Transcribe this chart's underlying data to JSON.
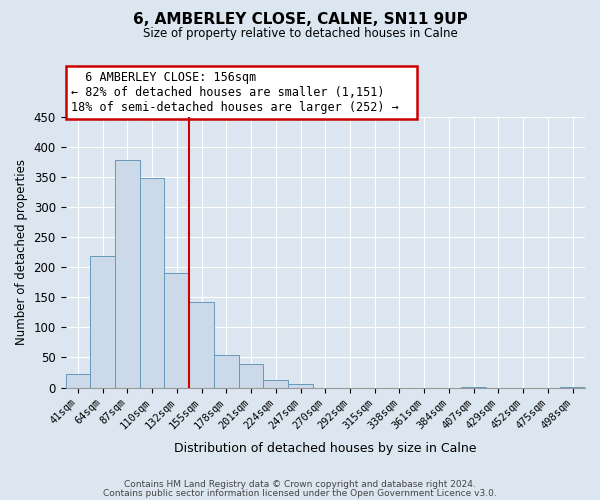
{
  "title": "6, AMBERLEY CLOSE, CALNE, SN11 9UP",
  "subtitle": "Size of property relative to detached houses in Calne",
  "xlabel": "Distribution of detached houses by size in Calne",
  "ylabel": "Number of detached properties",
  "bar_color": "#ccd9e8",
  "bar_edge_color": "#6699bb",
  "bin_labels": [
    "41sqm",
    "64sqm",
    "87sqm",
    "110sqm",
    "132sqm",
    "155sqm",
    "178sqm",
    "201sqm",
    "224sqm",
    "247sqm",
    "270sqm",
    "292sqm",
    "315sqm",
    "338sqm",
    "361sqm",
    "384sqm",
    "407sqm",
    "429sqm",
    "452sqm",
    "475sqm",
    "498sqm"
  ],
  "bar_heights": [
    22,
    218,
    378,
    348,
    190,
    142,
    54,
    40,
    13,
    6,
    0,
    0,
    0,
    0,
    0,
    0,
    1,
    0,
    0,
    0,
    1
  ],
  "ylim": [
    0,
    450
  ],
  "yticks": [
    0,
    50,
    100,
    150,
    200,
    250,
    300,
    350,
    400,
    450
  ],
  "annotation_title": "6 AMBERLEY CLOSE: 156sqm",
  "annotation_line1": "← 82% of detached houses are smaller (1,151)",
  "annotation_line2": "18% of semi-detached houses are larger (252) →",
  "footer1": "Contains HM Land Registry data © Crown copyright and database right 2024.",
  "footer2": "Contains public sector information licensed under the Open Government Licence v3.0.",
  "background_color": "#dce6f0",
  "plot_bg_color": "#dce6f0",
  "grid_color": "#ffffff",
  "annotation_box_color": "#ffffff",
  "annotation_box_edge": "#cc0000",
  "property_line_color": "#cc0000",
  "property_line_xindex": 5
}
